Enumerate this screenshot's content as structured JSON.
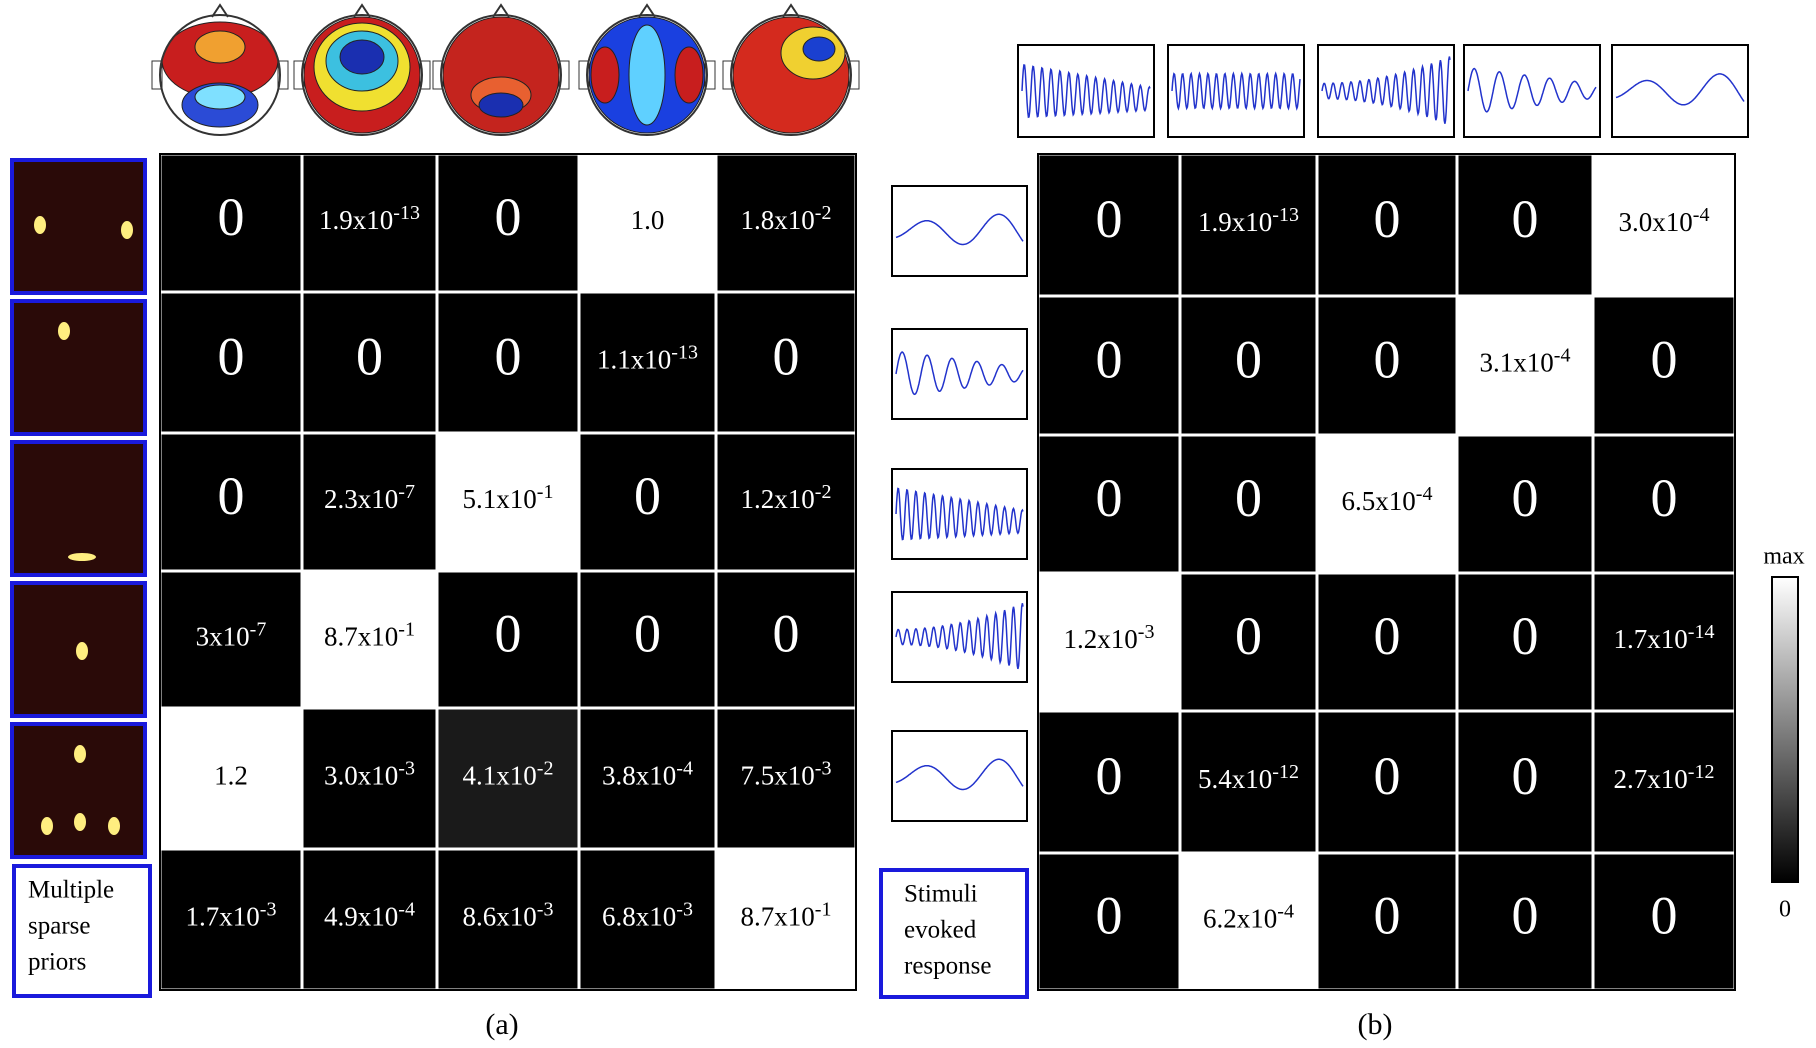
{
  "panel_a": {
    "caption": "(a)",
    "label": [
      "Multiple",
      "sparse",
      "priors"
    ],
    "rows": [
      [
        {
          "text": "0",
          "color": "#000"
        },
        {
          "text": "1.9x10",
          "sup": "-13",
          "color": "#000"
        },
        {
          "text": "0",
          "color": "#000"
        },
        {
          "text": "1.0",
          "color": "#fff"
        },
        {
          "text": "1.8x10",
          "sup": "-2",
          "color": "#000"
        }
      ],
      [
        {
          "text": "0",
          "color": "#000"
        },
        {
          "text": "0",
          "color": "#000"
        },
        {
          "text": "0",
          "color": "#000"
        },
        {
          "text": "1.1x10",
          "sup": "-13",
          "color": "#000"
        },
        {
          "text": "0",
          "color": "#000"
        }
      ],
      [
        {
          "text": "0",
          "color": "#000"
        },
        {
          "text": "2.3x10",
          "sup": "-7",
          "color": "#000"
        },
        {
          "text": "5.1x10",
          "sup": "-1",
          "color": "#fff"
        },
        {
          "text": "0",
          "color": "#000"
        },
        {
          "text": "1.2x10",
          "sup": "-2",
          "color": "#000"
        }
      ],
      [
        {
          "text": "3x10",
          "sup": "-7",
          "color": "#000"
        },
        {
          "text": "8.7x10",
          "sup": "-1",
          "color": "#fff"
        },
        {
          "text": "0",
          "color": "#000"
        },
        {
          "text": "0",
          "color": "#000"
        },
        {
          "text": "0",
          "color": "#000"
        }
      ],
      [
        {
          "text": "1.2",
          "color": "#fff"
        },
        {
          "text": "3.0x10",
          "sup": "-3",
          "color": "#000"
        },
        {
          "text": "4.1x10",
          "sup": "-2",
          "color": "#1a1a1a"
        },
        {
          "text": "3.8x10",
          "sup": "-4",
          "color": "#000"
        },
        {
          "text": "7.5x10",
          "sup": "-3",
          "color": "#000"
        }
      ],
      [
        {
          "text": "1.7x10",
          "sup": "-3",
          "color": "#000"
        },
        {
          "text": "4.9x10",
          "sup": "-4",
          "color": "#000"
        },
        {
          "text": "8.6x10",
          "sup": "-3",
          "color": "#000"
        },
        {
          "text": "6.8x10",
          "sup": "-3",
          "color": "#000"
        },
        {
          "text": "8.7x10",
          "sup": "-1",
          "color": "#fff"
        }
      ]
    ]
  },
  "panel_b": {
    "caption": "(b)",
    "label": [
      "Stimuli",
      "evoked",
      "response"
    ],
    "rows": [
      [
        {
          "text": "0",
          "color": "#000"
        },
        {
          "text": "1.9x10",
          "sup": "-13",
          "color": "#000"
        },
        {
          "text": "0",
          "color": "#000"
        },
        {
          "text": "0",
          "color": "#000"
        },
        {
          "text": "3.0x10",
          "sup": "-4",
          "color": "#fff"
        }
      ],
      [
        {
          "text": "0",
          "color": "#000"
        },
        {
          "text": "0",
          "color": "#000"
        },
        {
          "text": "0",
          "color": "#000"
        },
        {
          "text": "3.1x10",
          "sup": "-4",
          "color": "#fff"
        },
        {
          "text": "0",
          "color": "#000"
        }
      ],
      [
        {
          "text": "0",
          "color": "#000"
        },
        {
          "text": "0",
          "color": "#000"
        },
        {
          "text": "6.5x10",
          "sup": "-4",
          "color": "#fff"
        },
        {
          "text": "0",
          "color": "#000"
        },
        {
          "text": "0",
          "color": "#000"
        }
      ],
      [
        {
          "text": "1.2x10",
          "sup": "-3",
          "color": "#fff"
        },
        {
          "text": "0",
          "color": "#000"
        },
        {
          "text": "0",
          "color": "#000"
        },
        {
          "text": "0",
          "color": "#000"
        },
        {
          "text": "1.7x10",
          "sup": "-14",
          "color": "#000"
        }
      ],
      [
        {
          "text": "0",
          "color": "#000"
        },
        {
          "text": "5.4x10",
          "sup": "-12",
          "color": "#000"
        },
        {
          "text": "0",
          "color": "#000"
        },
        {
          "text": "0",
          "color": "#000"
        },
        {
          "text": "2.7x10",
          "sup": "-12",
          "color": "#000"
        }
      ],
      [
        {
          "text": "0",
          "color": "#000"
        },
        {
          "text": "6.2x10",
          "sup": "-4",
          "color": "#fff"
        },
        {
          "text": "0",
          "color": "#000"
        },
        {
          "text": "0",
          "color": "#000"
        },
        {
          "text": "0",
          "color": "#000"
        }
      ]
    ]
  },
  "colorbar": {
    "max_label": "max",
    "min_label": "0"
  }
}
